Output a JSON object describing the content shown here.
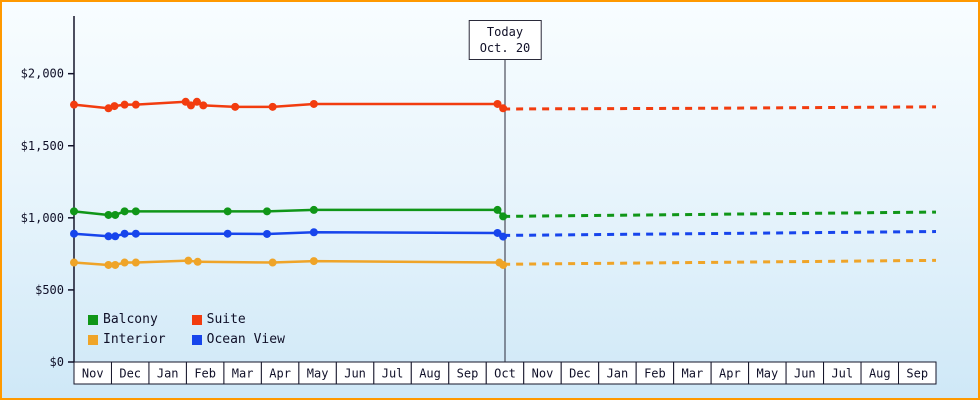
{
  "colors": {
    "frame_border": "#ff9900",
    "background_top": "#f8fdff",
    "background_bottom": "#cfe8f7",
    "axis_text": "#101028",
    "balcony": "#109618",
    "suite": "#f23c0f",
    "interior": "#efa428",
    "ocean_view": "#1745ec"
  },
  "today": {
    "label_line1": "Today",
    "label_line2": "Oct. 20"
  },
  "chart_data": {
    "type": "line",
    "title": "",
    "xlabel": "",
    "ylabel": "",
    "x_axis": {
      "months": [
        "Nov",
        "Dec",
        "Jan",
        "Feb",
        "Mar",
        "Apr",
        "May",
        "Jun",
        "Jul",
        "Aug",
        "Sep",
        "Oct",
        "Nov",
        "Dec",
        "Jan",
        "Feb",
        "Mar",
        "Apr",
        "May",
        "Jun",
        "Jul",
        "Aug",
        "Sep"
      ]
    },
    "y_axis": {
      "ticks": [
        0,
        500,
        1000,
        1500,
        2000
      ],
      "tick_labels": [
        "$0",
        "$500",
        "$1,000",
        "$1,500",
        "$2,000"
      ],
      "range": [
        0,
        2400
      ]
    },
    "today": {
      "x": 11.5,
      "label": "Today Oct. 20"
    },
    "series": [
      {
        "name": "Suite",
        "color": "#f23c0f",
        "style_past": "solid-with-markers",
        "style_future": "dashed",
        "past": [
          [
            0,
            1785
          ],
          [
            0.92,
            1760
          ],
          [
            1.08,
            1775
          ],
          [
            1.35,
            1785
          ],
          [
            1.65,
            1785
          ],
          [
            2.98,
            1805
          ],
          [
            3.12,
            1780
          ],
          [
            3.28,
            1805
          ],
          [
            3.45,
            1780
          ],
          [
            4.3,
            1770
          ],
          [
            5.3,
            1770
          ],
          [
            6.4,
            1790
          ],
          [
            11.3,
            1790
          ],
          [
            11.45,
            1760
          ]
        ],
        "future": [
          [
            11.45,
            1755
          ],
          [
            17,
            1760
          ],
          [
            23,
            1770
          ]
        ]
      },
      {
        "name": "Balcony",
        "color": "#109618",
        "style_past": "solid-with-markers",
        "style_future": "dashed",
        "past": [
          [
            0,
            1045
          ],
          [
            0.92,
            1020
          ],
          [
            1.1,
            1020
          ],
          [
            1.35,
            1045
          ],
          [
            1.65,
            1045
          ],
          [
            4.1,
            1045
          ],
          [
            5.15,
            1045
          ],
          [
            6.4,
            1055
          ],
          [
            11.3,
            1055
          ],
          [
            11.45,
            1010
          ]
        ],
        "future": [
          [
            11.45,
            1010
          ],
          [
            23,
            1040
          ]
        ]
      },
      {
        "name": "Ocean View",
        "color": "#1745ec",
        "style_past": "solid-with-markers",
        "style_future": "dashed",
        "past": [
          [
            0,
            890
          ],
          [
            0.92,
            872
          ],
          [
            1.1,
            872
          ],
          [
            1.35,
            890
          ],
          [
            1.65,
            890
          ],
          [
            4.1,
            890
          ],
          [
            5.15,
            888
          ],
          [
            6.4,
            900
          ],
          [
            11.3,
            895
          ],
          [
            11.45,
            870
          ]
        ],
        "future": [
          [
            11.45,
            878
          ],
          [
            23,
            905
          ]
        ]
      },
      {
        "name": "Interior",
        "color": "#efa428",
        "style_past": "solid-with-markers",
        "style_future": "dashed",
        "past": [
          [
            0,
            690
          ],
          [
            0.92,
            673
          ],
          [
            1.1,
            673
          ],
          [
            1.35,
            690
          ],
          [
            1.65,
            690
          ],
          [
            3.05,
            703
          ],
          [
            3.3,
            695
          ],
          [
            5.3,
            690
          ],
          [
            6.4,
            700
          ],
          [
            11.35,
            690
          ],
          [
            11.45,
            673
          ]
        ],
        "future": [
          [
            11.45,
            678
          ],
          [
            23,
            705
          ]
        ]
      }
    ],
    "legend": [
      {
        "label": "Balcony",
        "color": "#109618"
      },
      {
        "label": "Suite",
        "color": "#f23c0f"
      },
      {
        "label": "Interior",
        "color": "#efa428"
      },
      {
        "label": "Ocean View",
        "color": "#1745ec"
      }
    ],
    "legend_position": "bottom-left",
    "grid": false
  }
}
